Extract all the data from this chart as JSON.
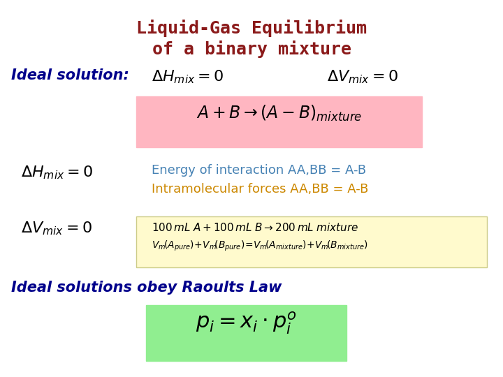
{
  "title_line1": "Liquid-Gas Equilibrium",
  "title_line2": "of a binary mixture",
  "title_color": "#8B1A1A",
  "title_fontsize": 18,
  "title_font": "monospace",
  "ideal_solution_label": "Ideal solution:",
  "ideal_solution_color": "#00008B",
  "ideal_solution_fontsize": 15,
  "dH_mix_eq": "$\\\\Delta H_{mix} = 0$",
  "dV_mix_eq": "$\\\\Delta V_{mix} = 0$",
  "eq_color": "black",
  "eq_fontsize": 16,
  "reaction_eq": "$A + B \\\\rightarrow \\\\left(A - B\\\\right)_{mixture}$",
  "reaction_color": "black",
  "reaction_fontsize": 17,
  "reaction_box_color": "#FFB6C1",
  "dH_mix_eq2": "$\\\\Delta H_{mix} = 0$",
  "energy_line1": "Energy of interaction AA,BB = A-B",
  "energy_line2": "Intramolecular forces AA,BB = A-B",
  "energy_color": "#4682B4",
  "energy_fontsize": 13,
  "dV_mix_eq2": "$\\\\Delta V_{mix} = 0$",
  "volume_line1": "$100\\\\,mL\\\\;A + 100\\\\,mL\\\\;B \\\\rightarrow 200\\\\,mL\\\\;mixture$",
  "volume_line2": "$V_m\\\\left(A_{pure}\\\\right) + V_m\\\\left(B_{pure}\\\\right) = V_m\\\\left(A_{mixture}\\\\right) + V_m\\\\left(B_{mixture}\\\\right)$",
  "volume_box_color": "#FFFACD",
  "volume_color": "black",
  "volume_fontsize": 12,
  "raoults_label": "Ideal solutions obey Raoults Law",
  "raoults_color": "#00008B",
  "raoults_fontsize": 15,
  "raoults_eq": "$p_i = x_i \\\\cdot p_i^{o}$",
  "raoults_eq_fontsize": 22,
  "raoults_eq_box_color": "#90EE90",
  "bg_color": "white"
}
